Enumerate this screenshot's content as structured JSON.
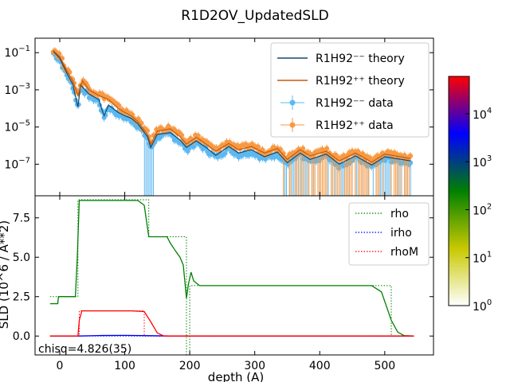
{
  "chart_data": [
    {
      "type": "line",
      "title": "R1D2OV_UpdatedSLD",
      "ylabel": "",
      "yscale": "log",
      "ylim": [
        2e-09,
        0.6
      ],
      "xlim": [
        -38,
        575
      ],
      "yticks": [
        {
          "value": 0.1,
          "base": "10",
          "exp": "−1"
        },
        {
          "value": 0.001,
          "base": "10",
          "exp": "−3"
        },
        {
          "value": 1e-05,
          "base": "10",
          "exp": "−5"
        },
        {
          "value": 1e-07,
          "base": "10",
          "exp": "−7"
        }
      ],
      "legend_position": "upper right",
      "legend": [
        {
          "label": "R1H92⁻⁻ theory",
          "color": "#12486e",
          "kind": "line"
        },
        {
          "label": "R1H92⁺⁺ theory",
          "color": "#c8590a",
          "kind": "line"
        },
        {
          "label": "R1H92⁻⁻ data",
          "color": "#5cb8f0",
          "kind": "errorbar"
        },
        {
          "label": "R1H92⁺⁺ data",
          "color": "#f79a44",
          "kind": "errorbar"
        }
      ],
      "series": [
        {
          "name": "R1H92⁻⁻ theory",
          "color": "#12486e",
          "points": [
            [
              -10,
              0.12
            ],
            [
              0,
              0.05
            ],
            [
              10,
              0.009
            ],
            [
              20,
              0.002
            ],
            [
              28,
              0.00012
            ],
            [
              32,
              0.0018
            ],
            [
              45,
              0.0006
            ],
            [
              60,
              0.0003
            ],
            [
              68,
              4e-05
            ],
            [
              75,
              0.00015
            ],
            [
              90,
              6e-05
            ],
            [
              100,
              4e-05
            ],
            [
              110,
              3e-05
            ],
            [
              120,
              1.5e-05
            ],
            [
              135,
              3e-06
            ],
            [
              140,
              8e-07
            ],
            [
              150,
              4e-06
            ],
            [
              170,
              5e-06
            ],
            [
              185,
              2e-06
            ],
            [
              195,
              8e-07
            ],
            [
              210,
              1.8e-06
            ],
            [
              225,
              8e-07
            ],
            [
              240,
              3e-07
            ],
            [
              260,
              9e-07
            ],
            [
              275,
              4e-07
            ],
            [
              295,
              6e-07
            ],
            [
              315,
              2.5e-07
            ],
            [
              335,
              4.5e-07
            ],
            [
              350,
              1.2e-07
            ],
            [
              370,
              4e-07
            ],
            [
              385,
              1.8e-07
            ],
            [
              410,
              3.5e-07
            ],
            [
              430,
              1e-07
            ],
            [
              455,
              2.8e-07
            ],
            [
              480,
              9e-08
            ],
            [
              500,
              2.5e-07
            ],
            [
              540,
              1.5e-07
            ]
          ]
        },
        {
          "name": "R1H92⁺⁺ theory",
          "color": "#c8590a",
          "points": [
            [
              -10,
              0.13
            ],
            [
              0,
              0.06
            ],
            [
              10,
              0.012
            ],
            [
              20,
              0.003
            ],
            [
              28,
              0.0005
            ],
            [
              35,
              0.003
            ],
            [
              45,
              0.001
            ],
            [
              60,
              0.0005
            ],
            [
              75,
              0.0003
            ],
            [
              90,
              0.0001
            ],
            [
              100,
              6e-05
            ],
            [
              110,
              4e-05
            ],
            [
              120,
              2e-05
            ],
            [
              135,
              4e-06
            ],
            [
              140,
              1.2e-06
            ],
            [
              150,
              6e-06
            ],
            [
              170,
              8e-06
            ],
            [
              185,
              3e-06
            ],
            [
              195,
              1.2e-06
            ],
            [
              210,
              2.8e-06
            ],
            [
              225,
              1.2e-06
            ],
            [
              240,
              5e-07
            ],
            [
              260,
              1.3e-06
            ],
            [
              275,
              6e-07
            ],
            [
              295,
              9e-07
            ],
            [
              315,
              4e-07
            ],
            [
              335,
              7e-07
            ],
            [
              350,
              1.8e-07
            ],
            [
              370,
              6e-07
            ],
            [
              385,
              2.8e-07
            ],
            [
              410,
              5e-07
            ],
            [
              430,
              1.5e-07
            ],
            [
              455,
              4e-07
            ],
            [
              480,
              1.3e-07
            ],
            [
              500,
              3.5e-07
            ],
            [
              540,
              2e-07
            ]
          ]
        }
      ],
      "errorbar_series": [
        {
          "name": "R1H92⁻⁻ data",
          "color": "#5cb8f0",
          "offset": 0.8,
          "ylow": 1e-09
        },
        {
          "name": "R1H92⁺⁺ data",
          "color": "#f79a44",
          "offset": 1.2,
          "ylow": 1e-09
        }
      ]
    },
    {
      "type": "line",
      "xlabel": "depth (A)",
      "ylabel": "SLD (10^6 / A**2)",
      "xlim": [
        -38,
        575
      ],
      "ylim": [
        -1.2,
        8.9
      ],
      "xticks": [
        0,
        100,
        200,
        300,
        400,
        500
      ],
      "yticks": [
        0.0,
        2.5,
        5.0,
        7.5
      ],
      "ytick_labels": [
        "0.0",
        "2.5",
        "5.0",
        "7.5"
      ],
      "legend_position": "upper right",
      "annotation": "chisq=4.826(35)",
      "series": [
        {
          "name": "rho",
          "color": "#008000",
          "style": "dotted",
          "points": [
            [
              -15,
              2.5
            ],
            [
              28,
              2.5
            ],
            [
              28,
              8.65
            ],
            [
              137,
              8.65
            ],
            [
              137,
              6.3
            ],
            [
              195,
              6.3
            ],
            [
              195,
              -1.2
            ],
            [
              200,
              -1.2
            ],
            [
              200,
              3.2
            ],
            [
              510,
              3.2
            ],
            [
              510,
              0
            ],
            [
              545,
              0
            ]
          ]
        },
        {
          "name": "irho",
          "color": "#0000ff",
          "style": "dotted",
          "points": [
            [
              -15,
              0
            ],
            [
              545,
              0
            ]
          ]
        },
        {
          "name": "rhoM",
          "color": "#ff0000",
          "style": "dotted",
          "points": [
            [
              -15,
              0
            ],
            [
              30,
              0
            ],
            [
              30,
              1.6
            ],
            [
              130,
              1.6
            ],
            [
              130,
              0
            ],
            [
              545,
              0
            ]
          ]
        },
        {
          "name": "rho smooth",
          "color": "#008000",
          "style": "solid",
          "points": [
            [
              -15,
              2.05
            ],
            [
              -3,
              2.05
            ],
            [
              -2,
              2.5
            ],
            [
              24,
              2.5
            ],
            [
              27,
              5.0
            ],
            [
              30,
              8.6
            ],
            [
              120,
              8.6
            ],
            [
              130,
              8.3
            ],
            [
              137,
              6.3
            ],
            [
              165,
              6.3
            ],
            [
              170,
              5.9
            ],
            [
              178,
              5.4
            ],
            [
              185,
              5.0
            ],
            [
              190,
              4.5
            ],
            [
              195,
              2.4
            ],
            [
              198,
              3.3
            ],
            [
              202,
              4.05
            ],
            [
              206,
              3.5
            ],
            [
              215,
              3.2
            ],
            [
              480,
              3.2
            ],
            [
              495,
              2.8
            ],
            [
              510,
              1.0
            ],
            [
              520,
              0.25
            ],
            [
              530,
              0.02
            ],
            [
              545,
              0
            ]
          ]
        },
        {
          "name": "irho smooth",
          "color": "#0000ff",
          "style": "solid",
          "points": [
            [
              -15,
              0
            ],
            [
              30,
              0
            ],
            [
              60,
              0.03
            ],
            [
              100,
              0.04
            ],
            [
              140,
              0.02
            ],
            [
              170,
              0
            ],
            [
              545,
              0
            ]
          ]
        },
        {
          "name": "rhoM smooth",
          "color": "#ff0000",
          "style": "solid",
          "points": [
            [
              -15,
              0
            ],
            [
              28,
              0
            ],
            [
              30,
              1.0
            ],
            [
              34,
              1.6
            ],
            [
              110,
              1.6
            ],
            [
              130,
              1.55
            ],
            [
              140,
              0.9
            ],
            [
              150,
              0.2
            ],
            [
              160,
              0
            ],
            [
              545,
              0
            ]
          ]
        }
      ]
    }
  ],
  "colorbar": {
    "ticks": [
      {
        "value": 1,
        "base": "10",
        "exp": "0"
      },
      {
        "value": 10,
        "base": "10",
        "exp": "1"
      },
      {
        "value": 100,
        "base": "10",
        "exp": "2"
      },
      {
        "value": 1000,
        "base": "10",
        "exp": "3"
      },
      {
        "value": 10000,
        "base": "10",
        "exp": "4"
      }
    ],
    "range": [
      1,
      60000
    ],
    "colors": [
      "#ffffff",
      "#c8c800",
      "#008000",
      "#0000ff",
      "#ff0000"
    ]
  }
}
